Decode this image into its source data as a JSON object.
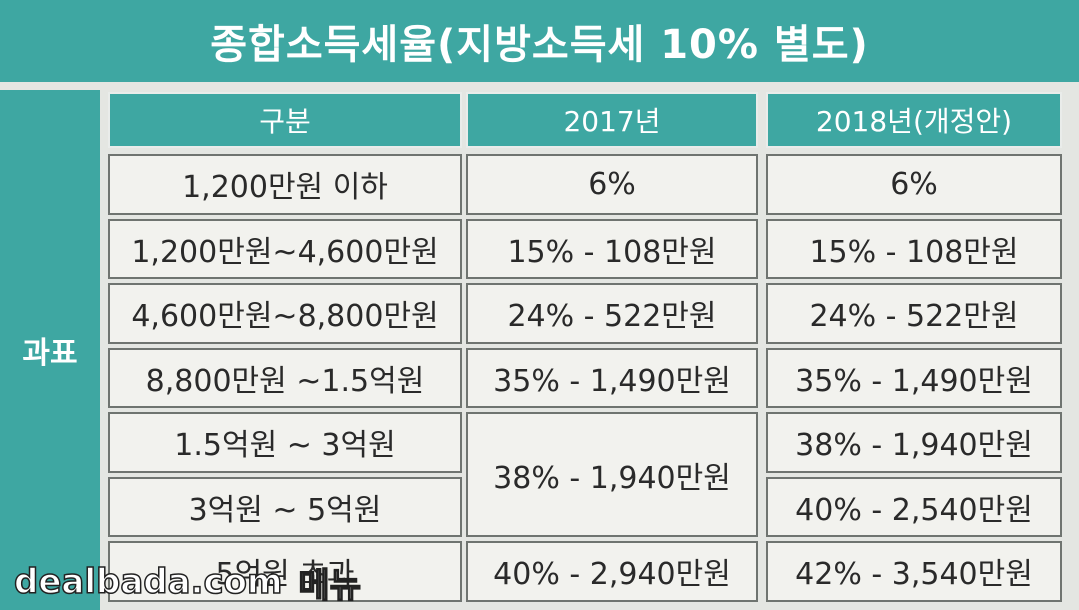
{
  "title": "종합소득세율(지방소득세 10% 별도)",
  "watermark": [
    "dealbada.com",
    "메뉴"
  ],
  "table": {
    "side_label": "과표",
    "header": [
      "구분",
      "2017년",
      "2018년(개정안)"
    ],
    "rows": [
      {
        "label": "1,200만원 이하",
        "y2017": "6%",
        "y2018": "6%"
      },
      {
        "label": "1,200만원~4,600만원",
        "y2017": "15% - 108만원",
        "y2018": "15% - 108만원"
      },
      {
        "label": "4,600만원~8,800만원",
        "y2017": "24% - 522만원",
        "y2018": "24% - 522만원"
      },
      {
        "label": "8,800만원 ~1.5억원",
        "y2017": "35% - 1,490만원",
        "y2018": "35% - 1,490만원"
      },
      {
        "label": "1.5억원 ~ 3억원",
        "y2017": "38% - 1,940만원",
        "y2018": "38% - 1,940만원"
      },
      {
        "label": "3억원 ~ 5억원",
        "y2018": "40% - 2,540만원"
      },
      {
        "label": "5억원 초과",
        "y2017": "40% - 2,940만원",
        "y2018": "42% - 3,540만원"
      }
    ]
  }
}
